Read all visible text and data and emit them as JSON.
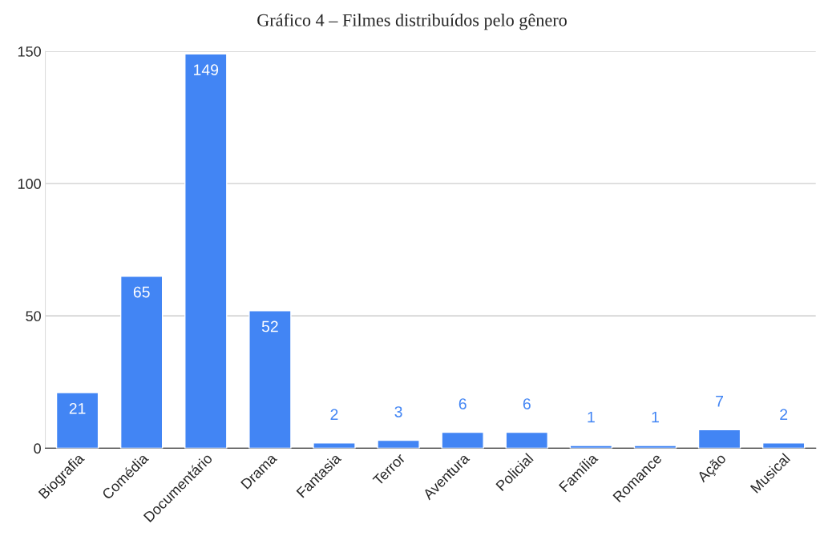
{
  "chart_data": {
    "type": "bar",
    "title": "Gráfico 4 – Filmes distribuídos pelo gênero",
    "categories": [
      "Biografia",
      "Comédia",
      "Documentário",
      "Drama",
      "Fantasia",
      "Terror",
      "Aventura",
      "Policial",
      "Família",
      "Romance",
      "Ação",
      "Musical"
    ],
    "values": [
      21,
      65,
      149,
      52,
      2,
      3,
      6,
      6,
      1,
      1,
      7,
      2
    ],
    "color": "#4285f4",
    "ylim": [
      0,
      150
    ],
    "yticks": [
      0,
      50,
      100,
      150
    ],
    "grid": "y",
    "data_labels": true
  }
}
